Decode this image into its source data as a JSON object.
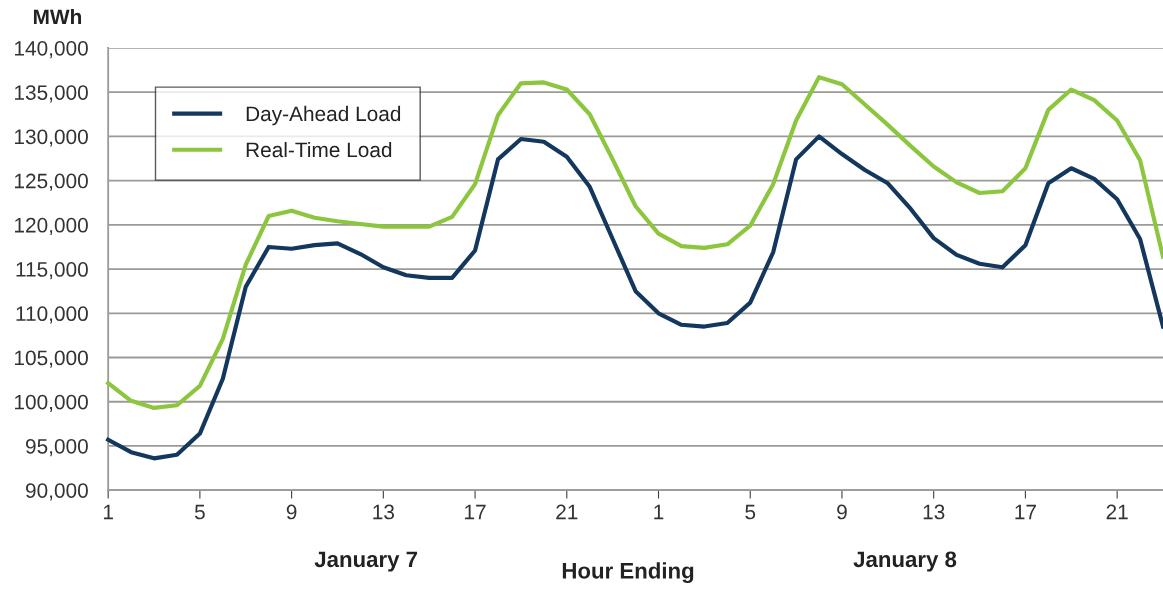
{
  "chart_data": {
    "type": "line",
    "ylabel": "MWh",
    "xlabel": "Hour Ending",
    "categories": [
      "1",
      null,
      null,
      null,
      "5",
      null,
      null,
      null,
      "9",
      null,
      null,
      null,
      "13",
      null,
      null,
      null,
      "17",
      null,
      null,
      null,
      "21",
      null,
      null,
      null,
      "1",
      null,
      null,
      null,
      "5",
      null,
      null,
      null,
      "9",
      null,
      null,
      null,
      "13",
      null,
      null,
      null,
      "17",
      null,
      null,
      null,
      "21",
      null,
      null
    ],
    "series": [
      {
        "name": "Day-Ahead Load",
        "color": "#14375e",
        "values": [
          95700,
          94300,
          93600,
          94000,
          96400,
          102600,
          113000,
          117500,
          117300,
          117700,
          117900,
          116700,
          115200,
          114300,
          114000,
          114000,
          117100,
          127400,
          129700,
          129400,
          127700,
          124300,
          118400,
          112500,
          110000,
          108700,
          108500,
          108900,
          111200,
          116900,
          127400,
          130000,
          128000,
          126200,
          124700,
          121800,
          118500,
          116600,
          115600,
          115200,
          117700,
          124700,
          126400,
          125200,
          122900,
          118400,
          108500
        ]
      },
      {
        "name": "Real-Time Load",
        "color": "#8cc63f",
        "values": [
          102100,
          100100,
          99300,
          99600,
          101800,
          107100,
          115500,
          121000,
          121600,
          120800,
          120400,
          120100,
          119800,
          119800,
          119800,
          120900,
          124600,
          132400,
          136000,
          136100,
          135300,
          132500,
          127400,
          122100,
          119000,
          117600,
          117400,
          117800,
          119900,
          124600,
          131800,
          136700,
          135900,
          133600,
          131300,
          128900,
          126600,
          124800,
          123600,
          123800,
          126400,
          133000,
          135300,
          134100,
          131800,
          127300,
          116400
        ]
      }
    ],
    "ylim": [
      90000,
      140000
    ],
    "yticks": [
      {
        "value": 90000,
        "label": "90,000"
      },
      {
        "value": 95000,
        "label": "95,000"
      },
      {
        "value": 100000,
        "label": "100,000"
      },
      {
        "value": 105000,
        "label": "105,000"
      },
      {
        "value": 110000,
        "label": "110,000"
      },
      {
        "value": 115000,
        "label": "115,000"
      },
      {
        "value": 120000,
        "label": "120,000"
      },
      {
        "value": 125000,
        "label": "125,000"
      },
      {
        "value": 130000,
        "label": "130,000"
      },
      {
        "value": 135000,
        "label": "135,000"
      },
      {
        "value": 140000,
        "label": "140,000"
      }
    ],
    "grid": "y",
    "legend": "top left",
    "marker": "none",
    "line_style": "solid",
    "annotations": [
      "January 7",
      "January 8"
    ]
  }
}
